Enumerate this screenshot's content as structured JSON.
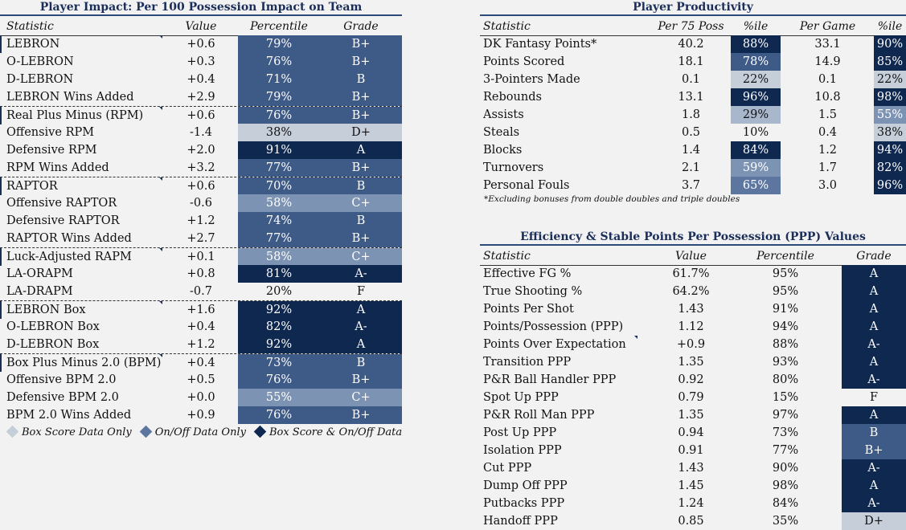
{
  "colors": {
    "light": "#c6ceda",
    "lightmid": "#a9b7cc",
    "mid": "#7d93b3",
    "midstrong": "#5c76a0",
    "strong": "#3e5a87",
    "dark": "#0f2850",
    "none": "transparent"
  },
  "impact": {
    "title": "Player Impact: Per 100 Possession Impact on Team",
    "headers": [
      "Statistic",
      "Value",
      "Percentile",
      "Grade"
    ],
    "rows": [
      {
        "stat": "LEBRON",
        "value": "+0.6",
        "pct": "79%",
        "grade": "B+",
        "shade": "strong",
        "sep": false,
        "mark": true
      },
      {
        "stat": "O-LEBRON",
        "value": "+0.3",
        "pct": "76%",
        "grade": "B+",
        "shade": "strong",
        "sep": false,
        "mark": false
      },
      {
        "stat": "D-LEBRON",
        "value": "+0.4",
        "pct": "71%",
        "grade": "B",
        "shade": "strong",
        "sep": false,
        "mark": false
      },
      {
        "stat": "LEBRON Wins Added",
        "value": "+2.9",
        "pct": "79%",
        "grade": "B+",
        "shade": "strong",
        "sep": false,
        "mark": false
      },
      {
        "stat": "Real Plus Minus (RPM)",
        "value": "+0.6",
        "pct": "76%",
        "grade": "B+",
        "shade": "strong",
        "sep": true,
        "mark": true
      },
      {
        "stat": "Offensive RPM",
        "value": "-1.4",
        "pct": "38%",
        "grade": "D+",
        "shade": "light",
        "sep": false,
        "mark": false
      },
      {
        "stat": "Defensive RPM",
        "value": "+2.0",
        "pct": "91%",
        "grade": "A",
        "shade": "dark",
        "sep": false,
        "mark": false
      },
      {
        "stat": "RPM Wins Added",
        "value": "+3.2",
        "pct": "77%",
        "grade": "B+",
        "shade": "strong",
        "sep": false,
        "mark": false
      },
      {
        "stat": "RAPTOR",
        "value": "+0.6",
        "pct": "70%",
        "grade": "B",
        "shade": "strong",
        "sep": true,
        "mark": true
      },
      {
        "stat": "Offensive RAPTOR",
        "value": "-0.6",
        "pct": "58%",
        "grade": "C+",
        "shade": "mid",
        "sep": false,
        "mark": false
      },
      {
        "stat": "Defensive RAPTOR",
        "value": "+1.2",
        "pct": "74%",
        "grade": "B",
        "shade": "strong",
        "sep": false,
        "mark": false
      },
      {
        "stat": "RAPTOR Wins Added",
        "value": "+2.7",
        "pct": "77%",
        "grade": "B+",
        "shade": "strong",
        "sep": false,
        "mark": false
      },
      {
        "stat": "Luck-Adjusted RAPM",
        "value": "+0.1",
        "pct": "58%",
        "grade": "C+",
        "shade": "mid",
        "sep": true,
        "mark": true
      },
      {
        "stat": "LA-ORAPM",
        "value": "+0.8",
        "pct": "81%",
        "grade": "A-",
        "shade": "dark",
        "sep": false,
        "mark": false
      },
      {
        "stat": "LA-DRAPM",
        "value": "-0.7",
        "pct": "20%",
        "grade": "F",
        "shade": "none",
        "sep": false,
        "mark": false
      },
      {
        "stat": "LEBRON Box",
        "value": "+1.6",
        "pct": "92%",
        "grade": "A",
        "shade": "dark",
        "sep": true,
        "mark": true
      },
      {
        "stat": "O-LEBRON Box",
        "value": "+0.4",
        "pct": "82%",
        "grade": "A-",
        "shade": "dark",
        "sep": false,
        "mark": false
      },
      {
        "stat": "D-LEBRON Box",
        "value": "+1.2",
        "pct": "92%",
        "grade": "A",
        "shade": "dark",
        "sep": false,
        "mark": false
      },
      {
        "stat": "Box Plus Minus 2.0 (BPM)",
        "value": "+0.4",
        "pct": "73%",
        "grade": "B",
        "shade": "strong",
        "sep": true,
        "mark": true
      },
      {
        "stat": "Offensive BPM 2.0",
        "value": "+0.5",
        "pct": "76%",
        "grade": "B+",
        "shade": "strong",
        "sep": false,
        "mark": false
      },
      {
        "stat": "Defensive BPM 2.0",
        "value": "+0.0",
        "pct": "55%",
        "grade": "C+",
        "shade": "mid",
        "sep": false,
        "mark": false
      },
      {
        "stat": "BPM 2.0 Wins Added",
        "value": "+0.9",
        "pct": "76%",
        "grade": "B+",
        "shade": "strong",
        "sep": false,
        "mark": false
      }
    ],
    "legend": [
      {
        "label": "Box Score Data Only",
        "color": "#c6ceda"
      },
      {
        "label": "On/Off Data Only",
        "color": "#5c76a0"
      },
      {
        "label": "Box Score & On/Off Data",
        "color": "#0f2850"
      }
    ]
  },
  "productivity": {
    "title": "Player Productivity",
    "headers": [
      "Statistic",
      "Per 75 Poss",
      "%ile",
      "Per Game",
      "%ile"
    ],
    "rows": [
      {
        "stat": "DK Fantasy Points*",
        "p75": "40.2",
        "p75pct": "88%",
        "p75shade": "dark",
        "pg": "33.1",
        "pgpct": "90%",
        "pgshade": "dark"
      },
      {
        "stat": "Points Scored",
        "p75": "18.1",
        "p75pct": "78%",
        "p75shade": "strong",
        "pg": "14.9",
        "pgpct": "85%",
        "pgshade": "dark"
      },
      {
        "stat": "3-Pointers Made",
        "p75": "0.1",
        "p75pct": "22%",
        "p75shade": "light",
        "pg": "0.1",
        "pgpct": "22%",
        "pgshade": "light"
      },
      {
        "stat": "Rebounds",
        "p75": "13.1",
        "p75pct": "96%",
        "p75shade": "dark",
        "pg": "10.8",
        "pgpct": "98%",
        "pgshade": "dark"
      },
      {
        "stat": "Assists",
        "p75": "1.8",
        "p75pct": "29%",
        "p75shade": "lightmid",
        "pg": "1.5",
        "pgpct": "55%",
        "pgshade": "mid"
      },
      {
        "stat": "Steals",
        "p75": "0.5",
        "p75pct": "10%",
        "p75shade": "none",
        "pg": "0.4",
        "pgpct": "38%",
        "pgshade": "light"
      },
      {
        "stat": "Blocks",
        "p75": "1.4",
        "p75pct": "84%",
        "p75shade": "dark",
        "pg": "1.2",
        "pgpct": "94%",
        "pgshade": "dark"
      },
      {
        "stat": "Turnovers",
        "p75": "2.1",
        "p75pct": "59%",
        "p75shade": "mid",
        "pg": "1.7",
        "pgpct": "82%",
        "pgshade": "dark"
      },
      {
        "stat": "Personal Fouls",
        "p75": "3.7",
        "p75pct": "65%",
        "p75shade": "midstrong",
        "pg": "3.0",
        "pgpct": "96%",
        "pgshade": "dark"
      }
    ],
    "note": "*Excluding bonuses from double doubles and triple doubles"
  },
  "efficiency": {
    "title": "Efficiency & Stable Points Per Possession (PPP) Values",
    "headers": [
      "Statistic",
      "Value",
      "Percentile",
      "Grade"
    ],
    "rows": [
      {
        "stat": "Effective FG %",
        "value": "61.7%",
        "pct": "95%",
        "grade": "A",
        "shade": "dark",
        "mark": false
      },
      {
        "stat": "True Shooting %",
        "value": "64.2%",
        "pct": "95%",
        "grade": "A",
        "shade": "dark",
        "mark": false
      },
      {
        "stat": "Points Per Shot",
        "value": "1.43",
        "pct": "91%",
        "grade": "A",
        "shade": "dark",
        "mark": false
      },
      {
        "stat": "Points/Possession (PPP)",
        "value": "1.12",
        "pct": "94%",
        "grade": "A",
        "shade": "dark",
        "mark": false
      },
      {
        "stat": "Points Over Expectation",
        "value": "+0.9",
        "pct": "88%",
        "grade": "A-",
        "shade": "dark",
        "mark": true
      },
      {
        "stat": "Transition PPP",
        "value": "1.35",
        "pct": "93%",
        "grade": "A",
        "shade": "dark",
        "mark": false
      },
      {
        "stat": "P&R Ball Handler PPP",
        "value": "0.92",
        "pct": "80%",
        "grade": "A-",
        "shade": "dark",
        "mark": false
      },
      {
        "stat": "Spot Up PPP",
        "value": "0.79",
        "pct": "15%",
        "grade": "F",
        "shade": "none",
        "mark": false
      },
      {
        "stat": "P&R Roll Man PPP",
        "value": "1.35",
        "pct": "97%",
        "grade": "A",
        "shade": "dark",
        "mark": false
      },
      {
        "stat": "Post Up PPP",
        "value": "0.94",
        "pct": "73%",
        "grade": "B",
        "shade": "strong",
        "mark": false
      },
      {
        "stat": "Isolation PPP",
        "value": "0.91",
        "pct": "77%",
        "grade": "B+",
        "shade": "strong",
        "mark": false
      },
      {
        "stat": "Cut PPP",
        "value": "1.43",
        "pct": "90%",
        "grade": "A-",
        "shade": "dark",
        "mark": false
      },
      {
        "stat": "Dump Off PPP",
        "value": "1.45",
        "pct": "98%",
        "grade": "A",
        "shade": "dark",
        "mark": false
      },
      {
        "stat": "Putbacks PPP",
        "value": "1.24",
        "pct": "84%",
        "grade": "A-",
        "shade": "dark",
        "mark": false
      },
      {
        "stat": "Handoff PPP",
        "value": "0.85",
        "pct": "35%",
        "grade": "D+",
        "shade": "light",
        "mark": false
      }
    ]
  }
}
